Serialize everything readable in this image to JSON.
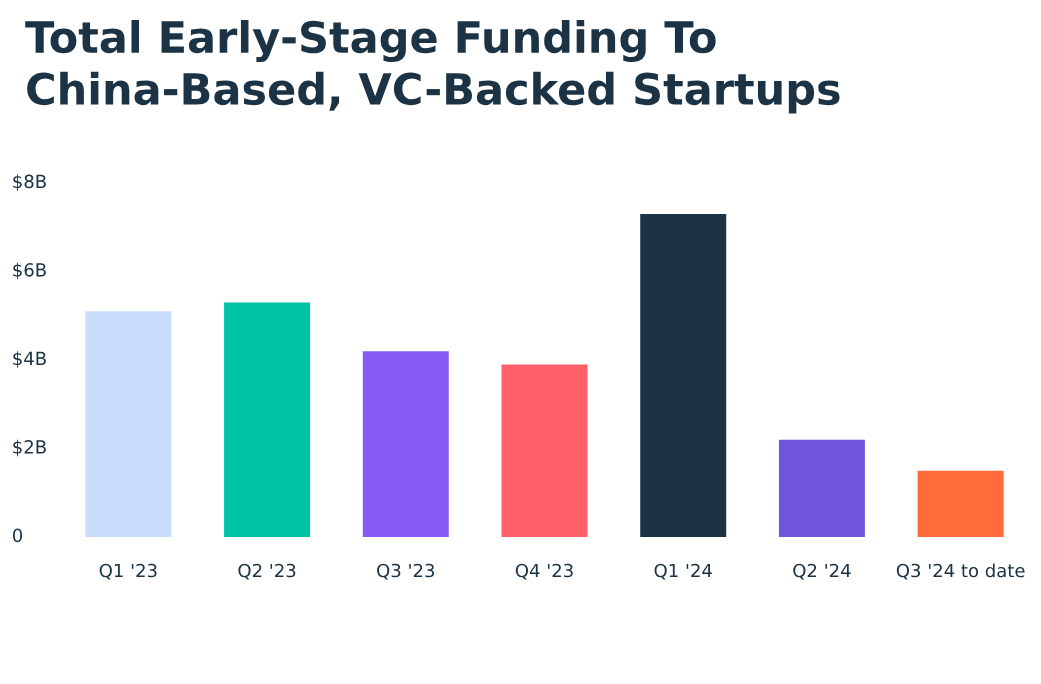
{
  "chart_data": {
    "type": "bar",
    "title": "Total Early-Stage Funding To China-Based, VC-Backed Startups",
    "categories": [
      "Q1 '23",
      "Q2 '23",
      "Q3 '23",
      "Q4 '23",
      "Q1 '24",
      "Q2 '24",
      "Q3 '24 to date"
    ],
    "values": [
      5.1,
      5.3,
      4.2,
      3.9,
      7.3,
      2.2,
      1.5
    ],
    "colors": [
      "#cadcfc",
      "#00c2a5",
      "#875bf7",
      "#ff5f69",
      "#1b3344",
      "#6f55d9",
      "#ff6b39"
    ],
    "ylim": [
      0,
      8
    ],
    "yticks": [
      {
        "value": 0,
        "label": "0"
      },
      {
        "value": 2,
        "label": "$2B"
      },
      {
        "value": 4,
        "label": "$4B"
      },
      {
        "value": 6,
        "label": "$6B"
      },
      {
        "value": 8,
        "label": "$8B"
      }
    ],
    "grid": false
  }
}
